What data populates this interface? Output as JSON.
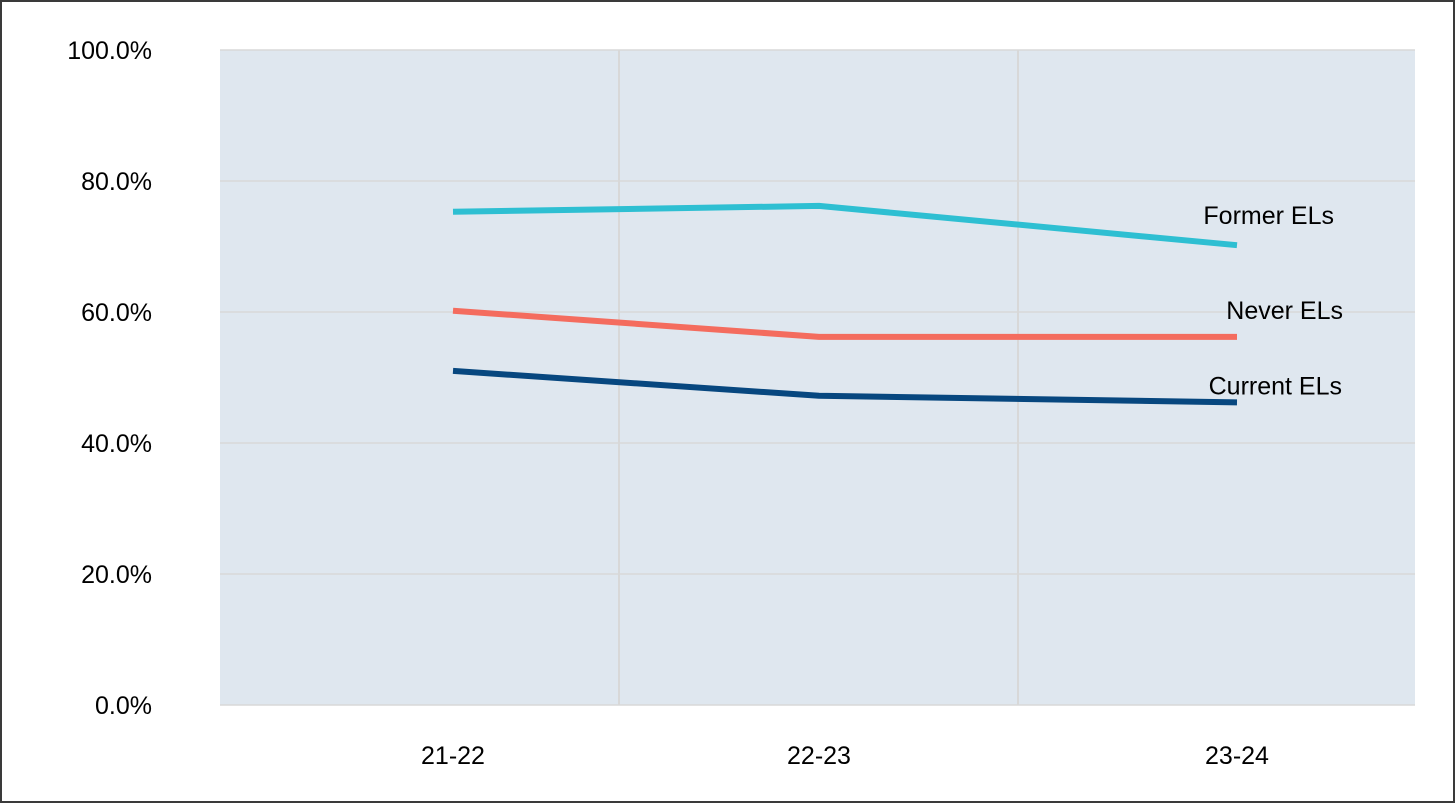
{
  "chart_data": {
    "type": "line",
    "title": "",
    "xlabel": "",
    "ylabel": "",
    "categories": [
      "21-22",
      "22-23",
      "23-24"
    ],
    "y_ticks": [
      "0.0%",
      "20.0%",
      "40.0%",
      "60.0%",
      "80.0%",
      "100.0%"
    ],
    "ylim": [
      0,
      100
    ],
    "grid": true,
    "legend": "direct labels at line ends",
    "plot_background": "#dfe7ef",
    "series": [
      {
        "name": "Former ELs",
        "color": "#2ebfd2",
        "values": [
          75.3,
          76.2,
          70.2
        ]
      },
      {
        "name": "Never ELs",
        "color": "#f46c5e",
        "values": [
          60.2,
          56.2,
          56.2
        ]
      },
      {
        "name": "Current ELs",
        "color": "#07477f",
        "values": [
          51.0,
          47.2,
          46.2
        ]
      }
    ]
  }
}
